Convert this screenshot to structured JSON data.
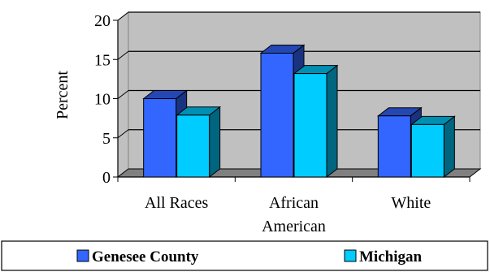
{
  "chart_data": {
    "type": "bar",
    "title": "",
    "xlabel": "",
    "ylabel": "Percent",
    "categories": [
      [
        "All Races"
      ],
      [
        "African",
        "American"
      ],
      [
        "White"
      ]
    ],
    "series": [
      {
        "name": "Genesee County",
        "values": [
          10.0,
          15.8,
          7.8
        ],
        "color": "#3366FF"
      },
      {
        "name": "Michigan",
        "values": [
          7.9,
          13.2,
          6.7
        ],
        "color": "#00CCFF"
      }
    ],
    "ylim": [
      0,
      20
    ],
    "yticks": [
      0,
      5,
      10,
      15,
      20
    ],
    "grid": true,
    "legend_position": "bottom",
    "colors": {
      "wall": "#C0C0C0",
      "floor": "#808080",
      "outline": "#000000"
    }
  }
}
